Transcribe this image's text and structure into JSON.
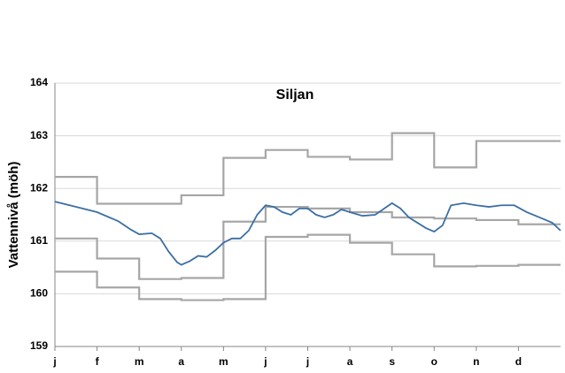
{
  "chart_data": {
    "type": "line",
    "title": "Siljan",
    "y_label": "Vattennivå (möh)",
    "xlim": [
      0,
      12
    ],
    "ylim": [
      159,
      164
    ],
    "yticks": [
      159,
      160,
      161,
      162,
      163,
      164
    ],
    "xticks": [
      {
        "value": 0,
        "label": "j"
      },
      {
        "value": 1,
        "label": "f"
      },
      {
        "value": 2,
        "label": "m"
      },
      {
        "value": 3,
        "label": "a"
      },
      {
        "value": 4,
        "label": "m"
      },
      {
        "value": 5,
        "label": "j"
      },
      {
        "value": 6,
        "label": "j"
      },
      {
        "value": 7,
        "label": "a"
      },
      {
        "value": 8,
        "label": "s"
      },
      {
        "value": 9,
        "label": "o"
      },
      {
        "value": 10,
        "label": "n"
      },
      {
        "value": 11,
        "label": "d"
      }
    ],
    "grid": true,
    "series": [
      {
        "color": "#a6a6a6",
        "step": true,
        "x": [
          0,
          1,
          2,
          3,
          4,
          5,
          6,
          7,
          8,
          9,
          10,
          11
        ],
        "values": [
          162.22,
          161.71,
          161.71,
          161.87,
          162.58,
          162.73,
          162.6,
          162.55,
          163.05,
          162.4,
          162.9,
          162.9
        ]
      },
      {
        "color": "#a6a6a6",
        "step": true,
        "x": [
          0,
          1,
          2,
          3,
          4,
          5,
          6,
          7,
          8,
          9,
          10,
          11
        ],
        "values": [
          161.05,
          160.67,
          160.28,
          160.3,
          161.37,
          161.65,
          161.62,
          161.55,
          161.45,
          161.43,
          161.4,
          161.32
        ]
      },
      {
        "color": "#a6a6a6",
        "step": true,
        "x": [
          0,
          1,
          2,
          3,
          4,
          5,
          6,
          7,
          8,
          9,
          10,
          11
        ],
        "values": [
          160.42,
          160.12,
          159.9,
          159.88,
          159.9,
          161.08,
          161.12,
          160.97,
          160.75,
          160.52,
          160.53,
          160.55
        ]
      },
      {
        "color": "#3b6fa5",
        "step": false,
        "x": [
          0,
          0.5,
          1,
          1.5,
          1.8,
          2,
          2.3,
          2.5,
          2.7,
          2.9,
          3,
          3.2,
          3.4,
          3.6,
          3.8,
          4,
          4.2,
          4.4,
          4.6,
          4.8,
          5,
          5.2,
          5.4,
          5.6,
          5.8,
          6,
          6.2,
          6.4,
          6.6,
          6.8,
          7,
          7.3,
          7.6,
          8,
          8.2,
          8.4,
          8.6,
          8.8,
          9,
          9.2,
          9.4,
          9.7,
          10,
          10.3,
          10.6,
          10.9,
          11.2,
          11.5,
          11.8,
          12
        ],
        "values": [
          161.75,
          161.65,
          161.55,
          161.38,
          161.22,
          161.13,
          161.15,
          161.05,
          160.8,
          160.6,
          160.55,
          160.62,
          160.72,
          160.7,
          160.82,
          160.97,
          161.05,
          161.05,
          161.2,
          161.5,
          161.68,
          161.65,
          161.55,
          161.5,
          161.62,
          161.62,
          161.5,
          161.45,
          161.5,
          161.6,
          161.55,
          161.48,
          161.5,
          161.72,
          161.62,
          161.45,
          161.35,
          161.25,
          161.18,
          161.3,
          161.68,
          161.72,
          161.68,
          161.65,
          161.68,
          161.68,
          161.55,
          161.45,
          161.35,
          161.2
        ]
      }
    ]
  }
}
